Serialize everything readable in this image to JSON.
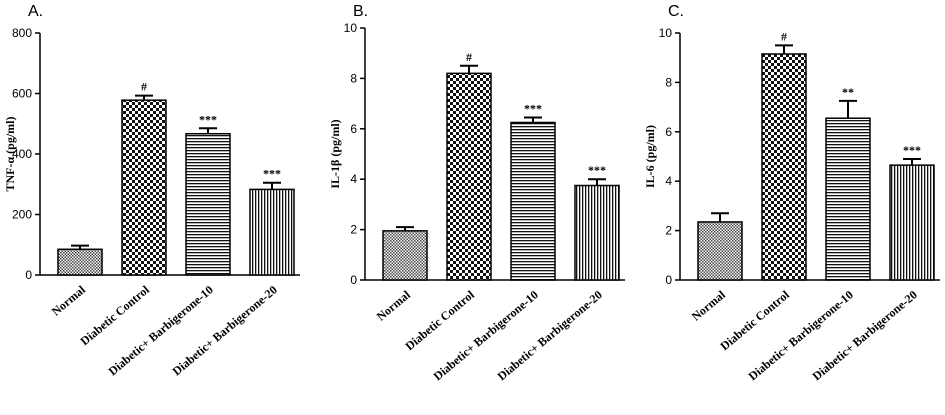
{
  "chart_data": [
    {
      "type": "bar",
      "title": "A.",
      "y_label": "TNF-α (pg/ml)",
      "categories": [
        "Normal",
        "Diabetic Control",
        "Diabetic+ Barbigerone-10",
        "Diabetic+ Barbigerone-20"
      ],
      "values": [
        85,
        578,
        467,
        283
      ],
      "errors": [
        12,
        15,
        18,
        22
      ],
      "annotations": [
        null,
        "#",
        "***",
        "***"
      ],
      "patterns": [
        "fine",
        "checker",
        "horizontal",
        "vertical"
      ],
      "ylim": [
        0,
        800
      ],
      "yticks": [
        0,
        200,
        400,
        600,
        800
      ]
    },
    {
      "type": "bar",
      "title": "B.",
      "y_label": "IL-1β (pg/ml)",
      "categories": [
        "Normal",
        "Diabetic Control",
        "Diabetic+ Barbigerone-10",
        "Diabetic+ Barbigerone-20"
      ],
      "values": [
        1.95,
        8.2,
        6.25,
        3.75
      ],
      "errors": [
        0.15,
        0.3,
        0.2,
        0.25
      ],
      "annotations": [
        null,
        "#",
        "***",
        "***"
      ],
      "patterns": [
        "fine",
        "checker",
        "horizontal",
        "vertical"
      ],
      "ylim": [
        0,
        10
      ],
      "yticks": [
        0,
        2,
        4,
        6,
        8,
        10
      ]
    },
    {
      "type": "bar",
      "title": "C.",
      "y_label": "IL-6 (pg/ml)",
      "categories": [
        "Normal",
        "Diabetic Control",
        "Diabetic+ Barbigerone-10",
        "Diabetic+ Barbigerone-20"
      ],
      "values": [
        2.35,
        9.15,
        6.55,
        4.65
      ],
      "errors": [
        0.35,
        0.35,
        0.7,
        0.25
      ],
      "annotations": [
        null,
        "#",
        "**",
        "***"
      ],
      "patterns": [
        "fine",
        "checker",
        "horizontal",
        "vertical"
      ],
      "ylim": [
        0,
        10
      ],
      "yticks": [
        0,
        2,
        4,
        6,
        8,
        10
      ]
    }
  ]
}
